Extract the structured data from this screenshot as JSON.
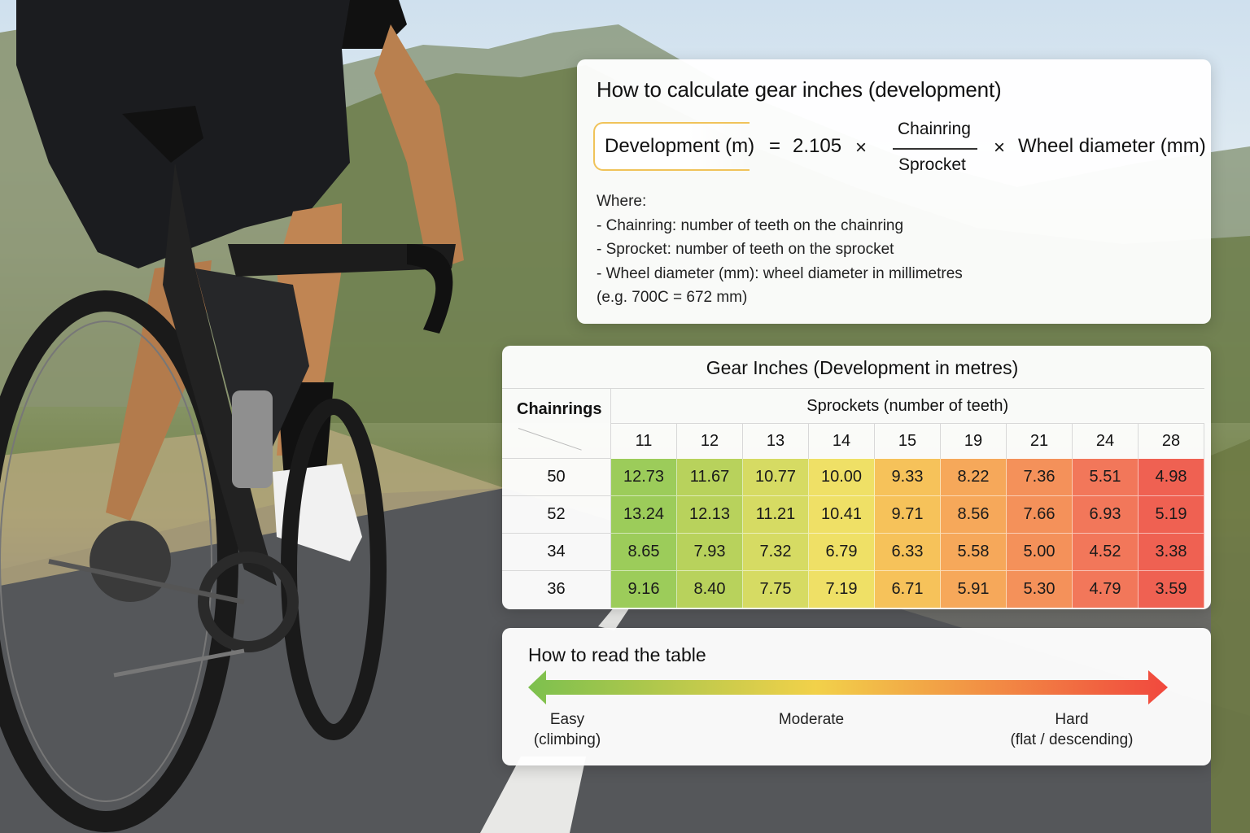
{
  "formula": {
    "title": "How to calculate gear inches (development)",
    "lhs": "Development (m)",
    "equals": "=",
    "constant": "2.105",
    "times": "×",
    "numerator": "Chainring",
    "denominator": "Sprocket",
    "wheel": "Wheel diameter (mm)",
    "where_lines": [
      "Where:",
      "- Chainring: number of teeth on the chainring",
      "- Sprocket: number of teeth on the sprocket",
      "- Wheel diameter (mm): wheel diameter in millimetres",
      " (e.g. 700C = 672 mm)"
    ]
  },
  "table": {
    "title": "Gear Inches (Development in metres)",
    "row_header": "Chainrings",
    "col_header": "Sprockets (number of teeth)",
    "sprockets": [
      "11",
      "12",
      "13",
      "14",
      "15",
      "19",
      "21",
      "24",
      "28"
    ],
    "rows": [
      {
        "chainring": "50",
        "values": [
          "12.73",
          "11.67",
          "10.77",
          "10.00",
          "9.33",
          "8.22",
          "7.36",
          "5.51",
          "4.98"
        ]
      },
      {
        "chainring": "52",
        "values": [
          "13.24",
          "12.13",
          "11.21",
          "10.41",
          "9.71",
          "8.56",
          "7.66",
          "6.93",
          "5.19"
        ]
      },
      {
        "chainring": "34",
        "values": [
          "8.65",
          "7.93",
          "7.32",
          "6.79",
          "6.33",
          "5.58",
          "5.00",
          "4.52",
          "3.38"
        ]
      },
      {
        "chainring": "36",
        "values": [
          "9.16",
          "8.40",
          "7.75",
          "7.19",
          "6.71",
          "5.91",
          "5.30",
          "4.79",
          "3.59"
        ]
      }
    ],
    "column_colors": [
      "#9ccc5a",
      "#b8d25c",
      "#d6db63",
      "#efe066",
      "#f6c25a",
      "#f6a85a",
      "#f4915a",
      "#f2775a",
      "#ef6152"
    ]
  },
  "legend": {
    "title": "How to read the table",
    "easy": [
      "Easy",
      "(climbing)"
    ],
    "moderate": "Moderate",
    "hard": [
      "Hard",
      "(flat / descending)"
    ],
    "gradient": [
      "#7cc04e",
      "#f2d14a",
      "#f1483e"
    ]
  }
}
